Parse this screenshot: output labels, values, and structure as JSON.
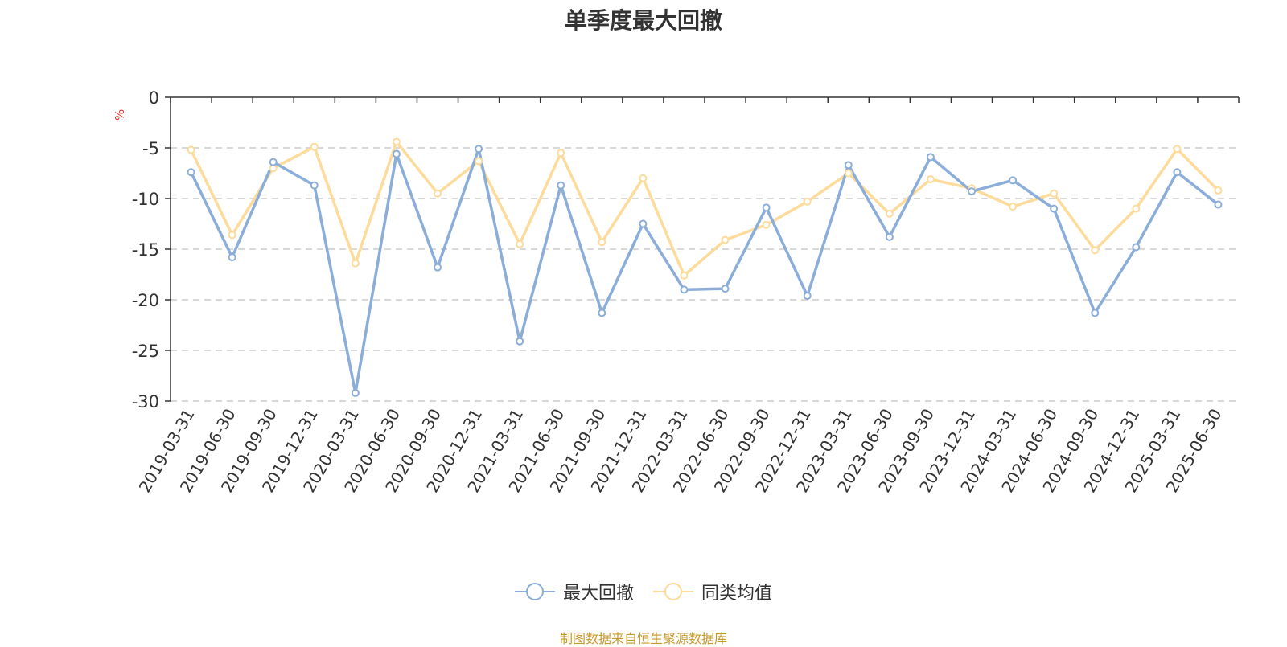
{
  "chart_data": {
    "type": "line",
    "title": "单季度最大回撤",
    "ylabel": "%",
    "ylim": [
      -30,
      0
    ],
    "yticks": [
      0,
      -5,
      -10,
      -15,
      -20,
      -25,
      -30
    ],
    "grid": true,
    "legend_position": "bottom",
    "categories": [
      "2019-03-31",
      "2019-06-30",
      "2019-09-30",
      "2019-12-31",
      "2020-03-31",
      "2020-06-30",
      "2020-09-30",
      "2020-12-31",
      "2021-03-31",
      "2021-06-30",
      "2021-09-30",
      "2021-12-31",
      "2022-03-31",
      "2022-06-30",
      "2022-09-30",
      "2022-12-31",
      "2023-03-31",
      "2023-06-30",
      "2023-09-30",
      "2023-12-31",
      "2024-03-31",
      "2024-06-30",
      "2024-09-30",
      "2024-12-31",
      "2025-03-31",
      "2025-06-30"
    ],
    "series": [
      {
        "name": "最大回撤",
        "color": "#8aadd9",
        "values": [
          -7.4,
          -15.8,
          -6.4,
          -8.7,
          -29.2,
          -5.6,
          -16.8,
          -5.1,
          -24.1,
          -8.7,
          -21.3,
          -12.5,
          -19.0,
          -18.9,
          -10.9,
          -19.6,
          -6.7,
          -13.8,
          -5.9,
          -9.3,
          -8.2,
          -11.0,
          -21.3,
          -14.8,
          -7.4,
          -10.6
        ]
      },
      {
        "name": "同类均值",
        "color": "#fddb9b",
        "values": [
          -5.2,
          -13.6,
          -7.0,
          -4.9,
          -16.4,
          -4.4,
          -9.5,
          -6.3,
          -14.5,
          -5.5,
          -14.3,
          -8.0,
          -17.6,
          -14.1,
          -12.6,
          -10.3,
          -7.5,
          -11.5,
          -8.1,
          -9.0,
          -10.8,
          -9.5,
          -15.1,
          -11.0,
          -5.1,
          -9.2
        ]
      }
    ]
  },
  "source": "制图数据来自恒生聚源数据库"
}
